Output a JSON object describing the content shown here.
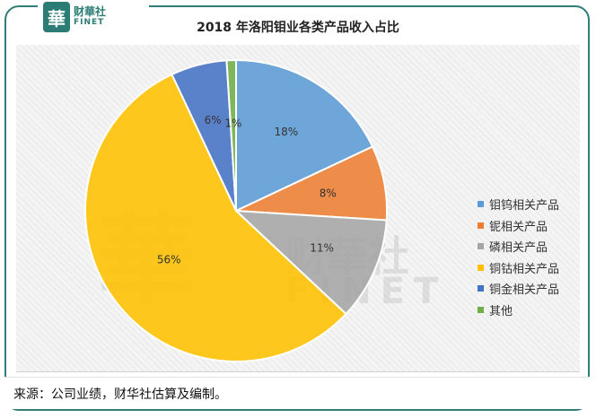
{
  "logo": {
    "mark": "華",
    "cn": "财華社",
    "en": "FINET"
  },
  "watermark": {
    "mark": "華",
    "cn": "财華社",
    "en": "FINET"
  },
  "chart_data": {
    "type": "pie",
    "title": "2018 年洛阳钼业各类产品收入占比",
    "categories": [
      "钼钨相关产品",
      "铌相关产品",
      "磷相关产品",
      "铜钴相关产品",
      "铜金相关产品",
      "其他"
    ],
    "values": [
      18,
      8,
      11,
      56,
      6,
      1
    ],
    "labels": [
      "18%",
      "8%",
      "11%",
      "56%",
      "6%",
      "1%"
    ],
    "colors": [
      "#5b9bd5",
      "#ed7d31",
      "#a5a5a5",
      "#ffc000",
      "#4472c4",
      "#70ad47"
    ],
    "legend_position": "right"
  },
  "footer": {
    "source": "来源：公司业绩，财华社估算及编制。"
  }
}
